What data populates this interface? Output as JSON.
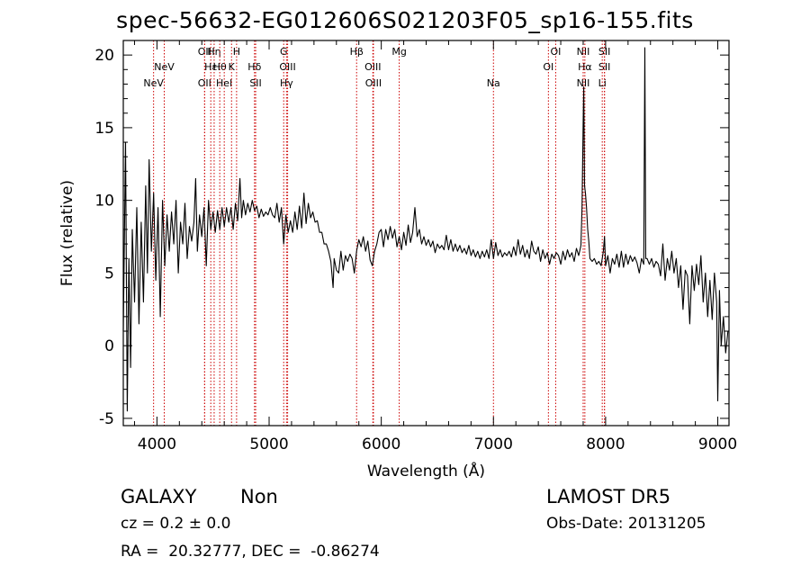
{
  "chart_data": {
    "type": "line",
    "title": "spec-56632-EG012606S021203F05_sp16-155.fits",
    "xlabel": "Wavelength (Å)",
    "ylabel": "Flux (relative)",
    "xlim": [
      3700,
      9100
    ],
    "ylim": [
      -5.5,
      21
    ],
    "xticks": [
      4000,
      5000,
      6000,
      7000,
      8000,
      9000
    ],
    "yticks": [
      -5,
      0,
      5,
      10,
      15,
      20
    ],
    "line_color": "#000000",
    "marker_color": "#cc0000",
    "series": [
      {
        "points": [
          [
            3700,
            1.0
          ],
          [
            3720,
            14.0
          ],
          [
            3735,
            -4.5
          ],
          [
            3750,
            6.0
          ],
          [
            3765,
            -1.5
          ],
          [
            3780,
            8.0
          ],
          [
            3800,
            3.0
          ],
          [
            3820,
            9.5
          ],
          [
            3840,
            1.5
          ],
          [
            3860,
            8.5
          ],
          [
            3880,
            3.0
          ],
          [
            3900,
            11.0
          ],
          [
            3915,
            5.0
          ],
          [
            3930,
            12.8
          ],
          [
            3950,
            6.5
          ],
          [
            3970,
            10.5
          ],
          [
            3990,
            4.5
          ],
          [
            4010,
            9.5
          ],
          [
            4030,
            2.0
          ],
          [
            4050,
            10.0
          ],
          [
            4070,
            5.5
          ],
          [
            4090,
            9.0
          ],
          [
            4110,
            6.5
          ],
          [
            4130,
            9.2
          ],
          [
            4150,
            7.0
          ],
          [
            4170,
            10.0
          ],
          [
            4190,
            5.0
          ],
          [
            4210,
            8.5
          ],
          [
            4230,
            7.0
          ],
          [
            4250,
            9.8
          ],
          [
            4270,
            6.0
          ],
          [
            4290,
            8.2
          ],
          [
            4310,
            7.2
          ],
          [
            4330,
            8.5
          ],
          [
            4345,
            11.5
          ],
          [
            4360,
            6.5
          ],
          [
            4380,
            9.0
          ],
          [
            4400,
            7.5
          ],
          [
            4420,
            9.5
          ],
          [
            4440,
            5.5
          ],
          [
            4460,
            10.0
          ],
          [
            4480,
            8.0
          ],
          [
            4500,
            9.2
          ],
          [
            4520,
            7.8
          ],
          [
            4540,
            9.3
          ],
          [
            4560,
            8.0
          ],
          [
            4580,
            9.5
          ],
          [
            4600,
            8.2
          ],
          [
            4620,
            9.5
          ],
          [
            4640,
            8.5
          ],
          [
            4660,
            9.5
          ],
          [
            4680,
            8.0
          ],
          [
            4700,
            9.8
          ],
          [
            4720,
            8.6
          ],
          [
            4740,
            11.5
          ],
          [
            4755,
            8.8
          ],
          [
            4770,
            10.0
          ],
          [
            4790,
            9.0
          ],
          [
            4810,
            9.8
          ],
          [
            4830,
            9.2
          ],
          [
            4850,
            10.0
          ],
          [
            4870,
            9.3
          ],
          [
            4890,
            9.6
          ],
          [
            4910,
            8.8
          ],
          [
            4930,
            9.4
          ],
          [
            4950,
            8.9
          ],
          [
            4970,
            9.2
          ],
          [
            4990,
            9.0
          ],
          [
            5010,
            9.5
          ],
          [
            5030,
            9.0
          ],
          [
            5050,
            8.8
          ],
          [
            5070,
            9.8
          ],
          [
            5090,
            8.5
          ],
          [
            5110,
            9.5
          ],
          [
            5130,
            7.0
          ],
          [
            5150,
            9.0
          ],
          [
            5170,
            7.8
          ],
          [
            5190,
            8.6
          ],
          [
            5210,
            7.8
          ],
          [
            5230,
            9.2
          ],
          [
            5250,
            8.0
          ],
          [
            5270,
            9.6
          ],
          [
            5290,
            8.1
          ],
          [
            5310,
            10.5
          ],
          [
            5330,
            8.4
          ],
          [
            5350,
            9.8
          ],
          [
            5370,
            8.8
          ],
          [
            5390,
            9.2
          ],
          [
            5410,
            8.5
          ],
          [
            5430,
            8.6
          ],
          [
            5450,
            7.8
          ],
          [
            5470,
            7.8
          ],
          [
            5490,
            7.0
          ],
          [
            5510,
            7.0
          ],
          [
            5530,
            6.5
          ],
          [
            5550,
            5.8
          ],
          [
            5570,
            4.0
          ],
          [
            5580,
            6.0
          ],
          [
            5600,
            5.2
          ],
          [
            5620,
            5.0
          ],
          [
            5640,
            6.5
          ],
          [
            5660,
            5.2
          ],
          [
            5680,
            6.2
          ],
          [
            5700,
            5.8
          ],
          [
            5720,
            6.3
          ],
          [
            5740,
            6.0
          ],
          [
            5760,
            5.0
          ],
          [
            5780,
            6.5
          ],
          [
            5800,
            7.3
          ],
          [
            5820,
            6.8
          ],
          [
            5840,
            7.5
          ],
          [
            5860,
            6.5
          ],
          [
            5880,
            7.2
          ],
          [
            5900,
            5.9
          ],
          [
            5920,
            5.5
          ],
          [
            5940,
            6.5
          ],
          [
            5960,
            7.0
          ],
          [
            5980,
            7.8
          ],
          [
            6000,
            8.0
          ],
          [
            6020,
            6.8
          ],
          [
            6040,
            8.0
          ],
          [
            6060,
            7.3
          ],
          [
            6080,
            8.2
          ],
          [
            6100,
            7.4
          ],
          [
            6120,
            8.0
          ],
          [
            6140,
            6.8
          ],
          [
            6160,
            7.5
          ],
          [
            6180,
            6.6
          ],
          [
            6200,
            7.8
          ],
          [
            6220,
            6.9
          ],
          [
            6240,
            8.3
          ],
          [
            6260,
            7.1
          ],
          [
            6280,
            7.8
          ],
          [
            6300,
            9.5
          ],
          [
            6320,
            7.5
          ],
          [
            6340,
            8.0
          ],
          [
            6360,
            7.0
          ],
          [
            6380,
            7.5
          ],
          [
            6400,
            6.9
          ],
          [
            6420,
            7.3
          ],
          [
            6440,
            6.8
          ],
          [
            6460,
            7.2
          ],
          [
            6480,
            6.4
          ],
          [
            6500,
            7.0
          ],
          [
            6520,
            6.7
          ],
          [
            6540,
            6.9
          ],
          [
            6560,
            6.6
          ],
          [
            6580,
            7.6
          ],
          [
            6600,
            6.6
          ],
          [
            6620,
            7.3
          ],
          [
            6640,
            6.5
          ],
          [
            6660,
            7.0
          ],
          [
            6680,
            6.5
          ],
          [
            6700,
            6.9
          ],
          [
            6720,
            6.4
          ],
          [
            6740,
            6.7
          ],
          [
            6760,
            6.3
          ],
          [
            6780,
            6.9
          ],
          [
            6800,
            6.2
          ],
          [
            6820,
            6.6
          ],
          [
            6840,
            6.1
          ],
          [
            6860,
            6.5
          ],
          [
            6880,
            6.0
          ],
          [
            6900,
            6.5
          ],
          [
            6920,
            6.1
          ],
          [
            6940,
            6.6
          ],
          [
            6960,
            6.0
          ],
          [
            6980,
            7.3
          ],
          [
            7000,
            6.0
          ],
          [
            7020,
            7.1
          ],
          [
            7040,
            6.2
          ],
          [
            7060,
            6.6
          ],
          [
            7080,
            6.1
          ],
          [
            7100,
            6.4
          ],
          [
            7120,
            6.2
          ],
          [
            7140,
            6.5
          ],
          [
            7160,
            6.1
          ],
          [
            7180,
            6.8
          ],
          [
            7200,
            6.2
          ],
          [
            7220,
            7.3
          ],
          [
            7240,
            6.3
          ],
          [
            7260,
            6.9
          ],
          [
            7280,
            6.1
          ],
          [
            7300,
            6.6
          ],
          [
            7320,
            6.0
          ],
          [
            7340,
            7.2
          ],
          [
            7360,
            6.5
          ],
          [
            7380,
            6.3
          ],
          [
            7400,
            6.8
          ],
          [
            7420,
            5.8
          ],
          [
            7440,
            6.6
          ],
          [
            7460,
            6.0
          ],
          [
            7480,
            6.4
          ],
          [
            7500,
            5.6
          ],
          [
            7520,
            6.3
          ],
          [
            7540,
            6.0
          ],
          [
            7560,
            6.4
          ],
          [
            7580,
            6.2
          ],
          [
            7600,
            5.6
          ],
          [
            7620,
            6.5
          ],
          [
            7640,
            5.9
          ],
          [
            7660,
            6.6
          ],
          [
            7680,
            6.1
          ],
          [
            7700,
            6.4
          ],
          [
            7720,
            5.8
          ],
          [
            7740,
            6.7
          ],
          [
            7760,
            6.2
          ],
          [
            7780,
            6.9
          ],
          [
            7790,
            9.5
          ],
          [
            7800,
            15.5
          ],
          [
            7805,
            17.8
          ],
          [
            7812,
            11.0
          ],
          [
            7820,
            10.5
          ],
          [
            7830,
            9.5
          ],
          [
            7840,
            8.0
          ],
          [
            7850,
            7.2
          ],
          [
            7860,
            6.0
          ],
          [
            7880,
            5.8
          ],
          [
            7900,
            6.0
          ],
          [
            7920,
            5.6
          ],
          [
            7940,
            5.8
          ],
          [
            7960,
            5.5
          ],
          [
            7980,
            6.5
          ],
          [
            7990,
            7.5
          ],
          [
            8000,
            5.5
          ],
          [
            8020,
            6.2
          ],
          [
            8040,
            5.0
          ],
          [
            8060,
            6.0
          ],
          [
            8080,
            5.6
          ],
          [
            8100,
            6.3
          ],
          [
            8120,
            5.4
          ],
          [
            8140,
            6.5
          ],
          [
            8160,
            5.4
          ],
          [
            8180,
            6.3
          ],
          [
            8200,
            5.6
          ],
          [
            8220,
            6.2
          ],
          [
            8240,
            5.8
          ],
          [
            8260,
            6.1
          ],
          [
            8280,
            5.7
          ],
          [
            8300,
            5.0
          ],
          [
            8320,
            6.0
          ],
          [
            8340,
            5.6
          ],
          [
            8350,
            20.5
          ],
          [
            8358,
            6.0
          ],
          [
            8370,
            6.0
          ],
          [
            8390,
            5.6
          ],
          [
            8410,
            6.0
          ],
          [
            8430,
            5.4
          ],
          [
            8450,
            5.8
          ],
          [
            8470,
            5.6
          ],
          [
            8490,
            4.8
          ],
          [
            8510,
            7.0
          ],
          [
            8530,
            4.5
          ],
          [
            8550,
            6.0
          ],
          [
            8570,
            5.2
          ],
          [
            8590,
            6.5
          ],
          [
            8610,
            5.0
          ],
          [
            8630,
            6.0
          ],
          [
            8650,
            4.0
          ],
          [
            8670,
            5.5
          ],
          [
            8690,
            2.5
          ],
          [
            8710,
            5.2
          ],
          [
            8730,
            4.8
          ],
          [
            8750,
            1.5
          ],
          [
            8770,
            5.5
          ],
          [
            8790,
            3.8
          ],
          [
            8810,
            5.6
          ],
          [
            8830,
            4.2
          ],
          [
            8850,
            6.2
          ],
          [
            8870,
            3.0
          ],
          [
            8890,
            5.0
          ],
          [
            8910,
            2.0
          ],
          [
            8930,
            4.5
          ],
          [
            8950,
            1.8
          ],
          [
            8970,
            5.0
          ],
          [
            8990,
            3.0
          ],
          [
            9000,
            -3.8
          ],
          [
            9015,
            3.8
          ],
          [
            9030,
            0.0
          ],
          [
            9050,
            2.0
          ],
          [
            9070,
            -0.5
          ],
          [
            9090,
            1.0
          ]
        ]
      }
    ],
    "lines": [
      {
        "x": 3970,
        "row": 2,
        "label": "NeV"
      },
      {
        "x": 4065,
        "row": 1,
        "label": "NeV"
      },
      {
        "x": 4425,
        "row": 0,
        "label": "OII"
      },
      {
        "x": 4425,
        "row": 2,
        "label": "OII"
      },
      {
        "x": 4480,
        "row": 1,
        "label": "Hε"
      },
      {
        "x": 4510,
        "row": 0,
        "label": "Hη"
      },
      {
        "x": 4560,
        "row": 1,
        "label": "Hθ"
      },
      {
        "x": 4600,
        "row": 2,
        "label": "HeI"
      },
      {
        "x": 4665,
        "row": 1,
        "label": "K"
      },
      {
        "x": 4710,
        "row": 0,
        "label": "H"
      },
      {
        "x": 4870,
        "row": 1,
        "label": "Hδ"
      },
      {
        "x": 4880,
        "row": 2,
        "label": "SII"
      },
      {
        "x": 5130,
        "row": 0,
        "label": "G"
      },
      {
        "x": 5165,
        "row": 1,
        "label": "OIII"
      },
      {
        "x": 5155,
        "row": 2,
        "label": "Hγ"
      },
      {
        "x": 5780,
        "row": 0,
        "label": "Hβ"
      },
      {
        "x": 5925,
        "row": 1,
        "label": "OIII"
      },
      {
        "x": 5930,
        "row": 2,
        "label": "OIII"
      },
      {
        "x": 6160,
        "row": 0,
        "label": "Mg"
      },
      {
        "x": 7000,
        "row": 2,
        "label": "Na"
      },
      {
        "x": 7555,
        "row": 0,
        "label": "OI"
      },
      {
        "x": 7490,
        "row": 1,
        "label": "OI"
      },
      {
        "x": 7800,
        "row": 0,
        "label": "NII"
      },
      {
        "x": 7815,
        "row": 1,
        "label": "Hα"
      },
      {
        "x": 7800,
        "row": 2,
        "label": "NII"
      },
      {
        "x": 7990,
        "row": 0,
        "label": "SII"
      },
      {
        "x": 7990,
        "row": 1,
        "label": "SII"
      },
      {
        "x": 7970,
        "row": 2,
        "label": "Li"
      }
    ]
  },
  "info": {
    "class": "GALAXY",
    "subclass": "Non",
    "cz": "cz = 0.2 ± 0.0",
    "coords": "RA =  20.32777, DEC =  -0.86274",
    "survey": "LAMOST DR5",
    "obs_date": "Obs-Date: 20131205"
  }
}
